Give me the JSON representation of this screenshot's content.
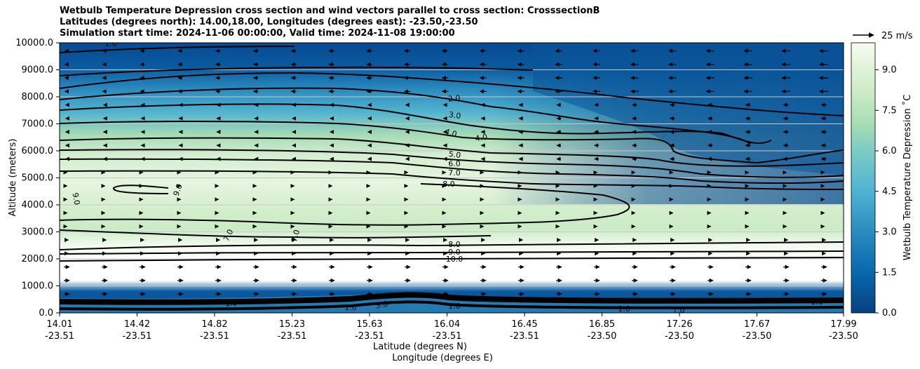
{
  "titles": {
    "line1": "Wetbulb Temperature Depression cross section and wind vectors parallel to cross section: CrosssectionB",
    "line2": "Latitudes (degrees north): 14.00,18.00, Longitudes (degrees east): -23.50,-23.50",
    "line3": "Simulation start time: 2024-11-06 00:00:00, Valid time: 2024-11-08 19:00:00"
  },
  "chart_data": {
    "type": "heatmap",
    "ylabel": "Altitude (meters)",
    "xlabel_lat": "Latitude (degrees N)",
    "xlabel_lon": "Longitude (degrees E)",
    "ylim": [
      0,
      10000
    ],
    "yticks": [
      "0.0",
      "1000.0",
      "2000.0",
      "3000.0",
      "4000.0",
      "5000.0",
      "6000.0",
      "7000.0",
      "8000.0",
      "9000.0",
      "10000.0"
    ],
    "xticks": [
      {
        "lat": "14.01",
        "lon": "-23.51"
      },
      {
        "lat": "14.42",
        "lon": "-23.51"
      },
      {
        "lat": "14.82",
        "lon": "-23.51"
      },
      {
        "lat": "15.23",
        "lon": "-23.51"
      },
      {
        "lat": "15.63",
        "lon": "-23.51"
      },
      {
        "lat": "16.04",
        "lon": "-23.51"
      },
      {
        "lat": "16.45",
        "lon": "-23.51"
      },
      {
        "lat": "16.85",
        "lon": "-23.50"
      },
      {
        "lat": "17.26",
        "lon": "-23.50"
      },
      {
        "lat": "17.67",
        "lon": "-23.50"
      },
      {
        "lat": "17.99",
        "lon": "-23.50"
      }
    ],
    "colorbar": {
      "label": "Wetbulb Temperature Depression ˚C",
      "ticks": [
        "0.0",
        "1.5",
        "3.0",
        "4.5",
        "6.0",
        "7.5",
        "9.0"
      ],
      "range": [
        0,
        10
      ]
    },
    "quiver_key": "25 m/s",
    "contour_labels": [
      "1.0",
      "2.0",
      "3.0",
      "4.0",
      "4.0",
      "5.0",
      "6.0",
      "7.0",
      "8.0",
      "9.0",
      "7.0",
      "7.0",
      "9.0",
      "8.0",
      "9.0",
      "10.0",
      "1.0",
      "3.0",
      "1.0",
      "1.0",
      "1.0",
      "1.0",
      "1.0"
    ],
    "grid": true
  }
}
